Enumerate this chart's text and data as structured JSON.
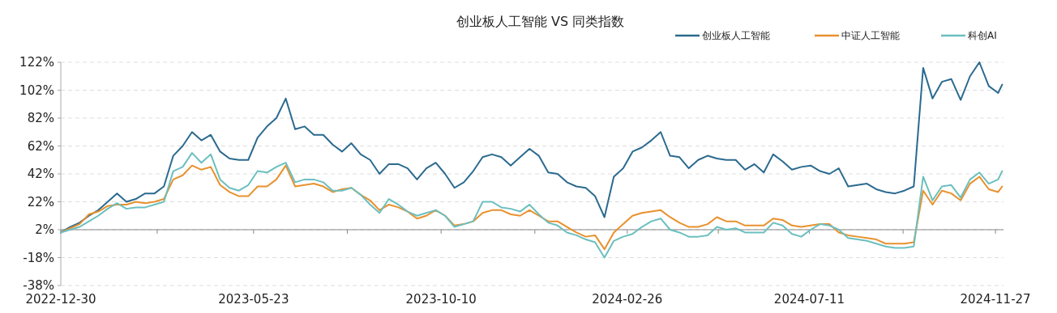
{
  "chart_data": {
    "type": "line",
    "title": "创业板人工智能 VS 同类指数",
    "x": [
      "2022-12-30",
      "2023-01-06",
      "2023-01-13",
      "2023-01-20",
      "2023-01-27",
      "2023-02-03",
      "2023-02-10",
      "2023-02-17",
      "2023-02-24",
      "2023-03-03",
      "2023-03-10",
      "2023-03-17",
      "2023-03-24",
      "2023-03-31",
      "2023-04-07",
      "2023-04-14",
      "2023-04-21",
      "2023-04-28",
      "2023-05-05",
      "2023-05-12",
      "2023-05-19",
      "2023-05-26",
      "2023-06-02",
      "2023-06-09",
      "2023-06-16",
      "2023-06-23",
      "2023-06-30",
      "2023-07-07",
      "2023-07-14",
      "2023-07-21",
      "2023-07-28",
      "2023-08-04",
      "2023-08-11",
      "2023-08-18",
      "2023-08-25",
      "2023-09-01",
      "2023-09-08",
      "2023-09-15",
      "2023-09-22",
      "2023-09-29",
      "2023-10-06",
      "2023-10-13",
      "2023-10-20",
      "2023-10-27",
      "2023-11-03",
      "2023-11-10",
      "2023-11-17",
      "2023-11-24",
      "2023-12-01",
      "2023-12-08",
      "2023-12-15",
      "2023-12-22",
      "2023-12-29",
      "2024-01-05",
      "2024-01-12",
      "2024-01-19",
      "2024-01-26",
      "2024-02-02",
      "2024-02-09",
      "2024-02-16",
      "2024-02-23",
      "2024-03-01",
      "2024-03-08",
      "2024-03-15",
      "2024-03-22",
      "2024-03-29",
      "2024-04-05",
      "2024-04-12",
      "2024-04-19",
      "2024-04-26",
      "2024-05-03",
      "2024-05-10",
      "2024-05-17",
      "2024-05-24",
      "2024-05-31",
      "2024-06-07",
      "2024-06-14",
      "2024-06-21",
      "2024-06-28",
      "2024-07-05",
      "2024-07-12",
      "2024-07-19",
      "2024-07-26",
      "2024-08-02",
      "2024-08-09",
      "2024-08-16",
      "2024-08-23",
      "2024-08-30",
      "2024-09-06",
      "2024-09-13",
      "2024-09-20",
      "2024-09-27",
      "2024-10-04",
      "2024-10-11",
      "2024-10-18",
      "2024-10-25",
      "2024-11-01",
      "2024-11-08",
      "2024-11-15",
      "2024-11-22",
      "2024-11-29",
      "2024-12-02"
    ],
    "series": [
      {
        "name": "创业板人工智能",
        "color": "#2b6a8f",
        "values": [
          0,
          4,
          7,
          12,
          16,
          22,
          28,
          22,
          24,
          28,
          28,
          33,
          55,
          62,
          72,
          66,
          70,
          58,
          53,
          52,
          52,
          68,
          76,
          82,
          96,
          74,
          76,
          70,
          70,
          63,
          58,
          64,
          56,
          52,
          42,
          49,
          49,
          46,
          38,
          46,
          50,
          42,
          32,
          36,
          44,
          54,
          56,
          54,
          48,
          54,
          60,
          55,
          43,
          42,
          36,
          33,
          32,
          26,
          11,
          40,
          46,
          58,
          61,
          66,
          72,
          55,
          54,
          46,
          52,
          55,
          53,
          52,
          52,
          45,
          49,
          43,
          56,
          51,
          45,
          47,
          48,
          44,
          42,
          46,
          33,
          34,
          35,
          31,
          29,
          28,
          30,
          33,
          118,
          96,
          108,
          110,
          95,
          112,
          122,
          105,
          100,
          106
        ]
      },
      {
        "name": "中证人工智能",
        "color": "#e8912d",
        "values": [
          0,
          3,
          6,
          13,
          15,
          19,
          20,
          20,
          22,
          21,
          22,
          24,
          38,
          41,
          48,
          45,
          47,
          34,
          29,
          26,
          26,
          33,
          33,
          38,
          48,
          33,
          34,
          35,
          33,
          29,
          31,
          32,
          27,
          23,
          16,
          20,
          18,
          15,
          10,
          12,
          16,
          12,
          5,
          6,
          8,
          14,
          16,
          16,
          13,
          12,
          16,
          12,
          8,
          8,
          4,
          0,
          -3,
          -2,
          -12,
          0,
          6,
          12,
          14,
          15,
          16,
          11,
          7,
          4,
          4,
          6,
          11,
          8,
          8,
          5,
          5,
          5,
          10,
          9,
          5,
          4,
          5,
          6,
          6,
          0,
          -2,
          -3,
          -4,
          -5,
          -8,
          -8,
          -8,
          -7,
          30,
          20,
          30,
          28,
          23,
          35,
          40,
          31,
          29,
          33
        ]
      },
      {
        "name": "科创AI",
        "color": "#6cbfbf",
        "values": [
          0,
          2,
          4,
          8,
          12,
          17,
          21,
          17,
          18,
          18,
          20,
          22,
          44,
          47,
          57,
          50,
          56,
          38,
          32,
          30,
          34,
          44,
          43,
          47,
          50,
          36,
          38,
          38,
          36,
          30,
          30,
          32,
          27,
          20,
          14,
          24,
          20,
          15,
          12,
          14,
          16,
          12,
          4,
          6,
          8,
          22,
          22,
          18,
          17,
          15,
          20,
          13,
          7,
          5,
          0,
          -2,
          -5,
          -7,
          -18,
          -6,
          -3,
          -1,
          4,
          8,
          10,
          2,
          0,
          -3,
          -3,
          -2,
          4,
          2,
          3,
          0,
          0,
          0,
          7,
          5,
          -1,
          -3,
          2,
          6,
          5,
          2,
          -4,
          -5,
          -6,
          -8,
          -10,
          -11,
          -11,
          -10,
          40,
          23,
          33,
          34,
          25,
          38,
          43,
          35,
          38,
          44
        ]
      }
    ],
    "xlim": [
      "2022-12-30",
      "2024-12-03"
    ],
    "xticks": [
      {
        "value": "2022-12-30",
        "label": "2022-12-30"
      },
      {
        "value": "2023-03-12",
        "label": null
      },
      {
        "value": "2023-05-23",
        "label": "2023-05-23"
      },
      {
        "value": "2023-08-01",
        "label": null
      },
      {
        "value": "2023-10-10",
        "label": "2023-10-10"
      },
      {
        "value": "2023-12-19",
        "label": null
      },
      {
        "value": "2024-02-26",
        "label": "2024-02-26"
      },
      {
        "value": "2024-05-04",
        "label": null
      },
      {
        "value": "2024-07-11",
        "label": "2024-07-11"
      },
      {
        "value": "2024-09-19",
        "label": null
      },
      {
        "value": "2024-11-27",
        "label": "2024-11-27"
      }
    ],
    "ylim": [
      -38,
      122
    ],
    "yticks": [
      {
        "value": -38,
        "label": "-38%"
      },
      {
        "value": -18,
        "label": "-18%"
      },
      {
        "value": 2,
        "label": "2%"
      },
      {
        "value": 22,
        "label": "22%"
      },
      {
        "value": 42,
        "label": "42%"
      },
      {
        "value": 62,
        "label": "62%"
      },
      {
        "value": 82,
        "label": "82%"
      },
      {
        "value": 102,
        "label": "102%"
      },
      {
        "value": 122,
        "label": "122%"
      }
    ],
    "ref_lines": [
      {
        "axis": "y",
        "value": 2,
        "color": "#888888"
      }
    ],
    "grid": "y",
    "legend": "top right",
    "marker": "none",
    "line_style": "solid"
  }
}
